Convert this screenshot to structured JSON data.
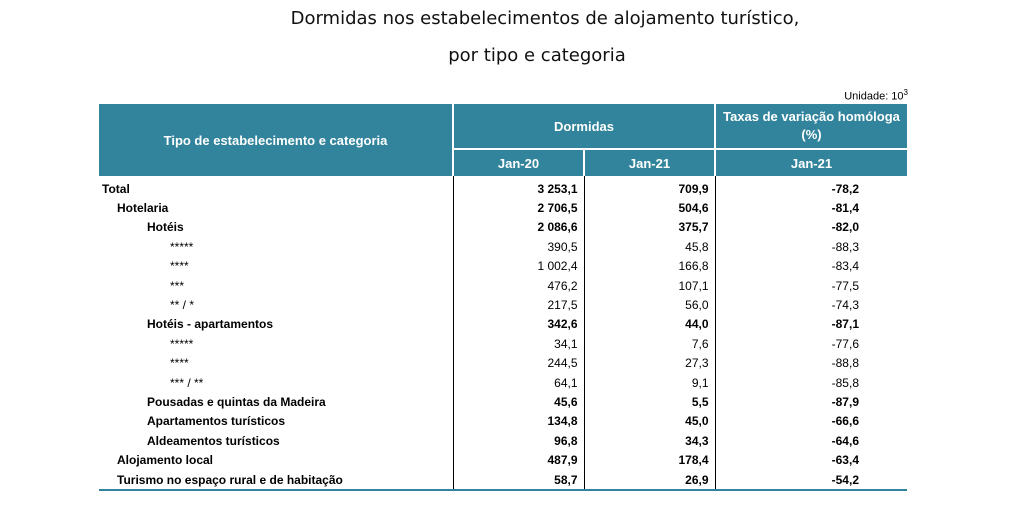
{
  "title_line1": "Dormidas nos estabelecimentos de alojamento turístico,",
  "title_line2": "por tipo e categoria",
  "unit_label": "Unidade: 10",
  "unit_exp": "3",
  "header": {
    "type": "Tipo de estabelecimento e categoria",
    "dormidas": "Dormidas",
    "taxas": "Taxas de variação homóloga (%)",
    "col_jan20": "Jan-20",
    "col_jan21": "Jan-21",
    "col_tax": "Jan-21"
  },
  "rows": [
    {
      "label": "Total",
      "jan20": "3 253,1",
      "jan21": "709,9",
      "tax": "-78,2",
      "level": 0,
      "bold": true
    },
    {
      "label": "Hotelaria",
      "jan20": "2 706,5",
      "jan21": "504,6",
      "tax": "-81,4",
      "level": 1,
      "bold": true
    },
    {
      "label": "Hotéis",
      "jan20": "2 086,6",
      "jan21": "375,7",
      "tax": "-82,0",
      "level": 2,
      "bold": true
    },
    {
      "label": "*****",
      "jan20": "390,5",
      "jan21": "45,8",
      "tax": "-88,3",
      "level": 3,
      "bold": false
    },
    {
      "label": "****",
      "jan20": "1 002,4",
      "jan21": "166,8",
      "tax": "-83,4",
      "level": 3,
      "bold": false
    },
    {
      "label": "***",
      "jan20": "476,2",
      "jan21": "107,1",
      "tax": "-77,5",
      "level": 3,
      "bold": false
    },
    {
      "label": "** / *",
      "jan20": "217,5",
      "jan21": "56,0",
      "tax": "-74,3",
      "level": 3,
      "bold": false
    },
    {
      "label": "Hotéis - apartamentos",
      "jan20": "342,6",
      "jan21": "44,0",
      "tax": "-87,1",
      "level": 2,
      "bold": true
    },
    {
      "label": "*****",
      "jan20": "34,1",
      "jan21": "7,6",
      "tax": "-77,6",
      "level": 3,
      "bold": false
    },
    {
      "label": "****",
      "jan20": "244,5",
      "jan21": "27,3",
      "tax": "-88,8",
      "level": 3,
      "bold": false
    },
    {
      "label": "*** / **",
      "jan20": "64,1",
      "jan21": "9,1",
      "tax": "-85,8",
      "level": 3,
      "bold": false
    },
    {
      "label": "Pousadas e quintas da Madeira",
      "jan20": "45,6",
      "jan21": "5,5",
      "tax": "-87,9",
      "level": 2,
      "bold": true
    },
    {
      "label": "Apartamentos turísticos",
      "jan20": "134,8",
      "jan21": "45,0",
      "tax": "-66,6",
      "level": 2,
      "bold": true
    },
    {
      "label": "Aldeamentos turísticos",
      "jan20": "96,8",
      "jan21": "34,3",
      "tax": "-64,6",
      "level": 2,
      "bold": true
    },
    {
      "label": "Alojamento local",
      "jan20": "487,9",
      "jan21": "178,4",
      "tax": "-63,4",
      "level": 1,
      "bold": true
    },
    {
      "label": "Turismo no espaço rural e de habitação",
      "jan20": "58,7",
      "jan21": "26,9",
      "tax": "-54,2",
      "level": 1,
      "bold": true
    }
  ],
  "colors": {
    "header_bg": "#31849B",
    "header_text": "#FFFFFF"
  }
}
